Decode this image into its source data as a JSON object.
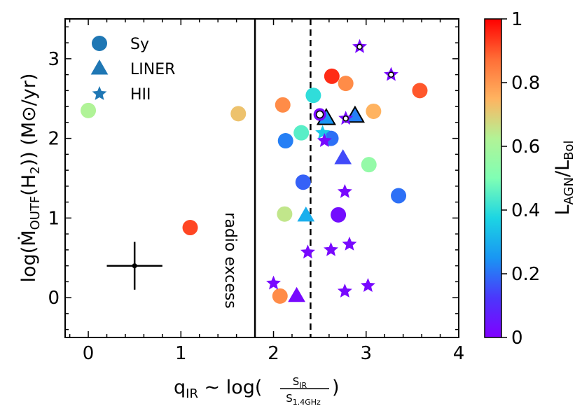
{
  "chart_data": {
    "type": "scatter",
    "xlabel": "q_IR ~ log(S_IR / S_1.4GHz)",
    "ylabel": "log(Ṁ_OUTF(H2)) (M☉/yr)",
    "xlim": [
      -0.25,
      4.0
    ],
    "ylim": [
      -0.5,
      3.5
    ],
    "xticks": [
      "0",
      "1",
      "2",
      "3",
      "4"
    ],
    "yticks": [
      "0",
      "1",
      "2",
      "3"
    ],
    "legend": {
      "placement": "top-left",
      "entries": [
        "Sy",
        "LINER",
        "HII"
      ]
    },
    "colorbar": {
      "label": "L_AGN/L_Bol",
      "min": 0,
      "max": 1,
      "ticks": [
        "0",
        "0.2",
        "0.4",
        "0.6",
        "0.8",
        "1"
      ],
      "colormap": "rainbow"
    },
    "vlines": [
      {
        "x": 1.8,
        "style": "solid"
      },
      {
        "x": 2.4,
        "style": "dashed"
      }
    ],
    "annotation": "radio excess",
    "error_bar": {
      "x": 0.5,
      "y": 0.4,
      "xerr": 0.3,
      "yerr": 0.3
    },
    "series": [
      {
        "name": "Sy",
        "marker": "circle",
        "points": [
          {
            "x": 0.0,
            "y": 2.35,
            "c": 0.62
          },
          {
            "x": 1.1,
            "y": 0.88,
            "c": 0.92
          },
          {
            "x": 1.62,
            "y": 2.31,
            "c": 0.72
          },
          {
            "x": 2.07,
            "y": 0.02,
            "c": 0.82
          },
          {
            "x": 2.1,
            "y": 2.42,
            "c": 0.82
          },
          {
            "x": 2.12,
            "y": 1.05,
            "c": 0.65
          },
          {
            "x": 2.13,
            "y": 1.97,
            "c": 0.22
          },
          {
            "x": 2.3,
            "y": 2.07,
            "c": 0.45
          },
          {
            "x": 2.32,
            "y": 1.45,
            "c": 0.18
          },
          {
            "x": 2.43,
            "y": 2.54,
            "c": 0.4
          },
          {
            "x": 2.62,
            "y": 2.0,
            "c": 0.2
          },
          {
            "x": 2.63,
            "y": 2.78,
            "c": 0.95
          },
          {
            "x": 2.7,
            "y": 1.04,
            "c": 0.03
          },
          {
            "x": 2.78,
            "y": 2.69,
            "c": 0.82
          },
          {
            "x": 3.03,
            "y": 1.67,
            "c": 0.55
          },
          {
            "x": 3.08,
            "y": 2.34,
            "c": 0.75
          },
          {
            "x": 3.35,
            "y": 1.28,
            "c": 0.2
          },
          {
            "x": 3.58,
            "y": 2.6,
            "c": 0.9
          }
        ]
      },
      {
        "name": "LINER",
        "marker": "triangle",
        "points": [
          {
            "x": 2.25,
            "y": 0.02,
            "c": 0.02
          },
          {
            "x": 2.35,
            "y": 1.03,
            "c": 0.3
          },
          {
            "x": 2.57,
            "y": 2.25,
            "c": 0.25
          },
          {
            "x": 2.75,
            "y": 1.75,
            "c": 0.15
          },
          {
            "x": 2.88,
            "y": 2.28,
            "c": 0.22
          }
        ]
      },
      {
        "name": "HII",
        "marker": "star",
        "points": [
          {
            "x": 2.0,
            "y": 0.18,
            "c": 0.02
          },
          {
            "x": 2.37,
            "y": 0.57,
            "c": 0.02
          },
          {
            "x": 2.53,
            "y": 2.07,
            "c": 0.35
          },
          {
            "x": 2.55,
            "y": 1.97,
            "c": 0.02
          },
          {
            "x": 2.62,
            "y": 0.6,
            "c": 0.02
          },
          {
            "x": 2.77,
            "y": 0.08,
            "c": 0.02
          },
          {
            "x": 2.77,
            "y": 1.33,
            "c": 0.02
          },
          {
            "x": 2.82,
            "y": 0.67,
            "c": 0.02
          },
          {
            "x": 3.02,
            "y": 0.15,
            "c": 0.02
          }
        ]
      },
      {
        "name": "highlighted",
        "points": [
          {
            "marker": "circle",
            "x": 2.5,
            "y": 2.3,
            "c": 0.02
          },
          {
            "marker": "star",
            "x": 2.78,
            "y": 2.25,
            "c": 0.02
          },
          {
            "marker": "star",
            "x": 2.93,
            "y": 3.15,
            "c": 0.02
          },
          {
            "marker": "star",
            "x": 3.27,
            "y": 2.8,
            "c": 0.02
          }
        ]
      }
    ]
  }
}
